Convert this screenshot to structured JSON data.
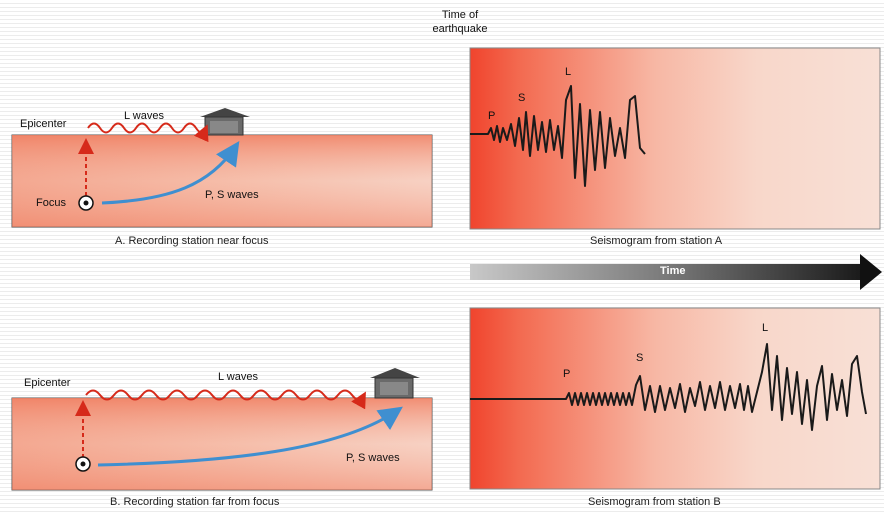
{
  "header": {
    "time_of_earthquake": "Time of\nearthquake"
  },
  "panel_a": {
    "caption": "A.  Recording station near focus",
    "epicenter": "Epicenter",
    "l_waves": "L waves",
    "focus": "Focus",
    "ps_waves": "P, S waves"
  },
  "panel_b": {
    "caption": "B.  Recording station far from focus",
    "epicenter": "Epicenter",
    "l_waves": "L waves",
    "ps_waves": "P, S waves"
  },
  "seismogram_a": {
    "caption": "Seismogram from station A",
    "p": "P",
    "s": "S",
    "l": "L"
  },
  "seismogram_b": {
    "caption": "Seismogram from station B",
    "p": "P",
    "s": "S",
    "l": "L"
  },
  "time_arrow": {
    "label": "Time"
  },
  "colors": {
    "earth_red": "#f2876a",
    "earth_light": "#f7d3c3",
    "wave_red": "#d62a1a",
    "arrow_blue": "#3f8fd0",
    "trace": "#1a1a1a"
  }
}
